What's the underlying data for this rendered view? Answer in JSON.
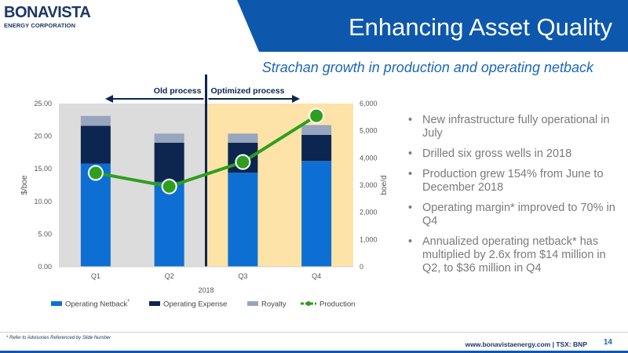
{
  "logo": {
    "name": "BONAVISTA",
    "sub": "ENERGY CORPORATION"
  },
  "title": "Enhancing Asset Quality",
  "subtitle": "Strachan growth in production and operating netback",
  "chart_data": {
    "type": "bar",
    "stacked": true,
    "categories": [
      "Q1",
      "Q2",
      "Q3",
      "Q4"
    ],
    "xlabel": "2018",
    "ylabel": "$/boe",
    "ylabel_right": "boe/d",
    "ylim": [
      0,
      25
    ],
    "yticks": [
      "0.00",
      "5.00",
      "10.00",
      "15.00",
      "20.00",
      "25.00"
    ],
    "ylim_right": [
      0,
      6000
    ],
    "yticks_right": [
      "0",
      "1,000",
      "2,000",
      "3,000",
      "4,000",
      "5,000",
      "6,000"
    ],
    "series": [
      {
        "name": "Operating Netback",
        "marker": "*",
        "axis": "left",
        "color": "#0d6fd3",
        "values": [
          15.8,
          13.0,
          14.4,
          16.2
        ]
      },
      {
        "name": "Operating Expense",
        "axis": "left",
        "color": "#0c2650",
        "values": [
          5.8,
          6.0,
          4.6,
          4.0
        ]
      },
      {
        "name": "Royalty",
        "axis": "left",
        "color": "#97a6be",
        "values": [
          1.5,
          1.4,
          1.4,
          1.5
        ]
      },
      {
        "name": "Production",
        "type": "line",
        "axis": "right",
        "color": "#2f9e1f",
        "values": [
          3450,
          2950,
          3850,
          5550
        ]
      }
    ],
    "regions": [
      {
        "label": "Old process",
        "from": 0,
        "to": 1,
        "color": "#dcdcdc"
      },
      {
        "label": "Optimized process",
        "from": 2,
        "to": 3,
        "color": "#fde3a8"
      }
    ],
    "legend_position": "bottom",
    "grid": false
  },
  "bullets": [
    "New infrastructure fully operational in July",
    "Drilled six gross wells in 2018",
    "Production grew 154% from June to December 2018",
    "Operating margin* improved to 70% in Q4",
    "Annualized operating netback* has multiplied by 2.6x from $14 million in Q2, to $36 million in Q4"
  ],
  "bullet_glyph": "•",
  "footer": {
    "footnote": "* Refer to Advisories Referenced by Slide Number",
    "url": "www.bonavistaenergy.com  |  TSX: BNP",
    "page": "14"
  }
}
